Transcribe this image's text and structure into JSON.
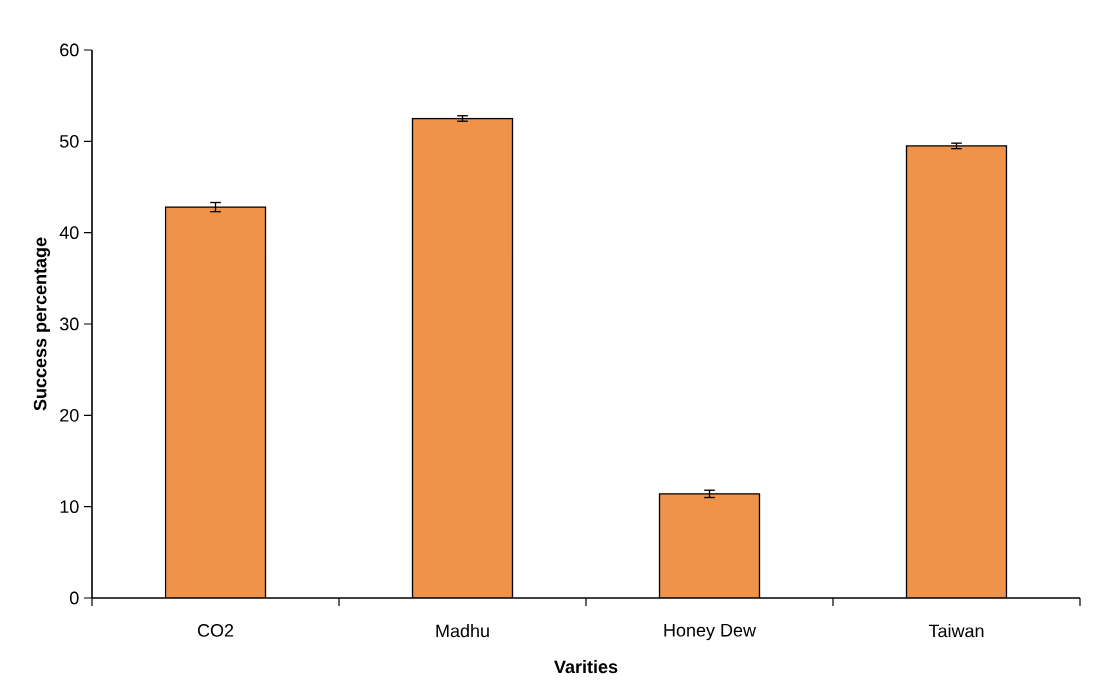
{
  "chart_data": {
    "type": "bar",
    "xlabel": "Varities",
    "ylabel": "Success percentage",
    "categories": [
      "CO2",
      "Madhu",
      "Honey Dew",
      "Taiwan"
    ],
    "values": [
      42.8,
      52.5,
      11.4,
      49.5
    ],
    "errors": [
      0.5,
      0.3,
      0.4,
      0.3
    ],
    "color": "#f0934a",
    "ylim": [
      0,
      60
    ],
    "yticks": [
      0,
      10,
      20,
      30,
      40,
      50,
      60
    ],
    "grid": false
  }
}
